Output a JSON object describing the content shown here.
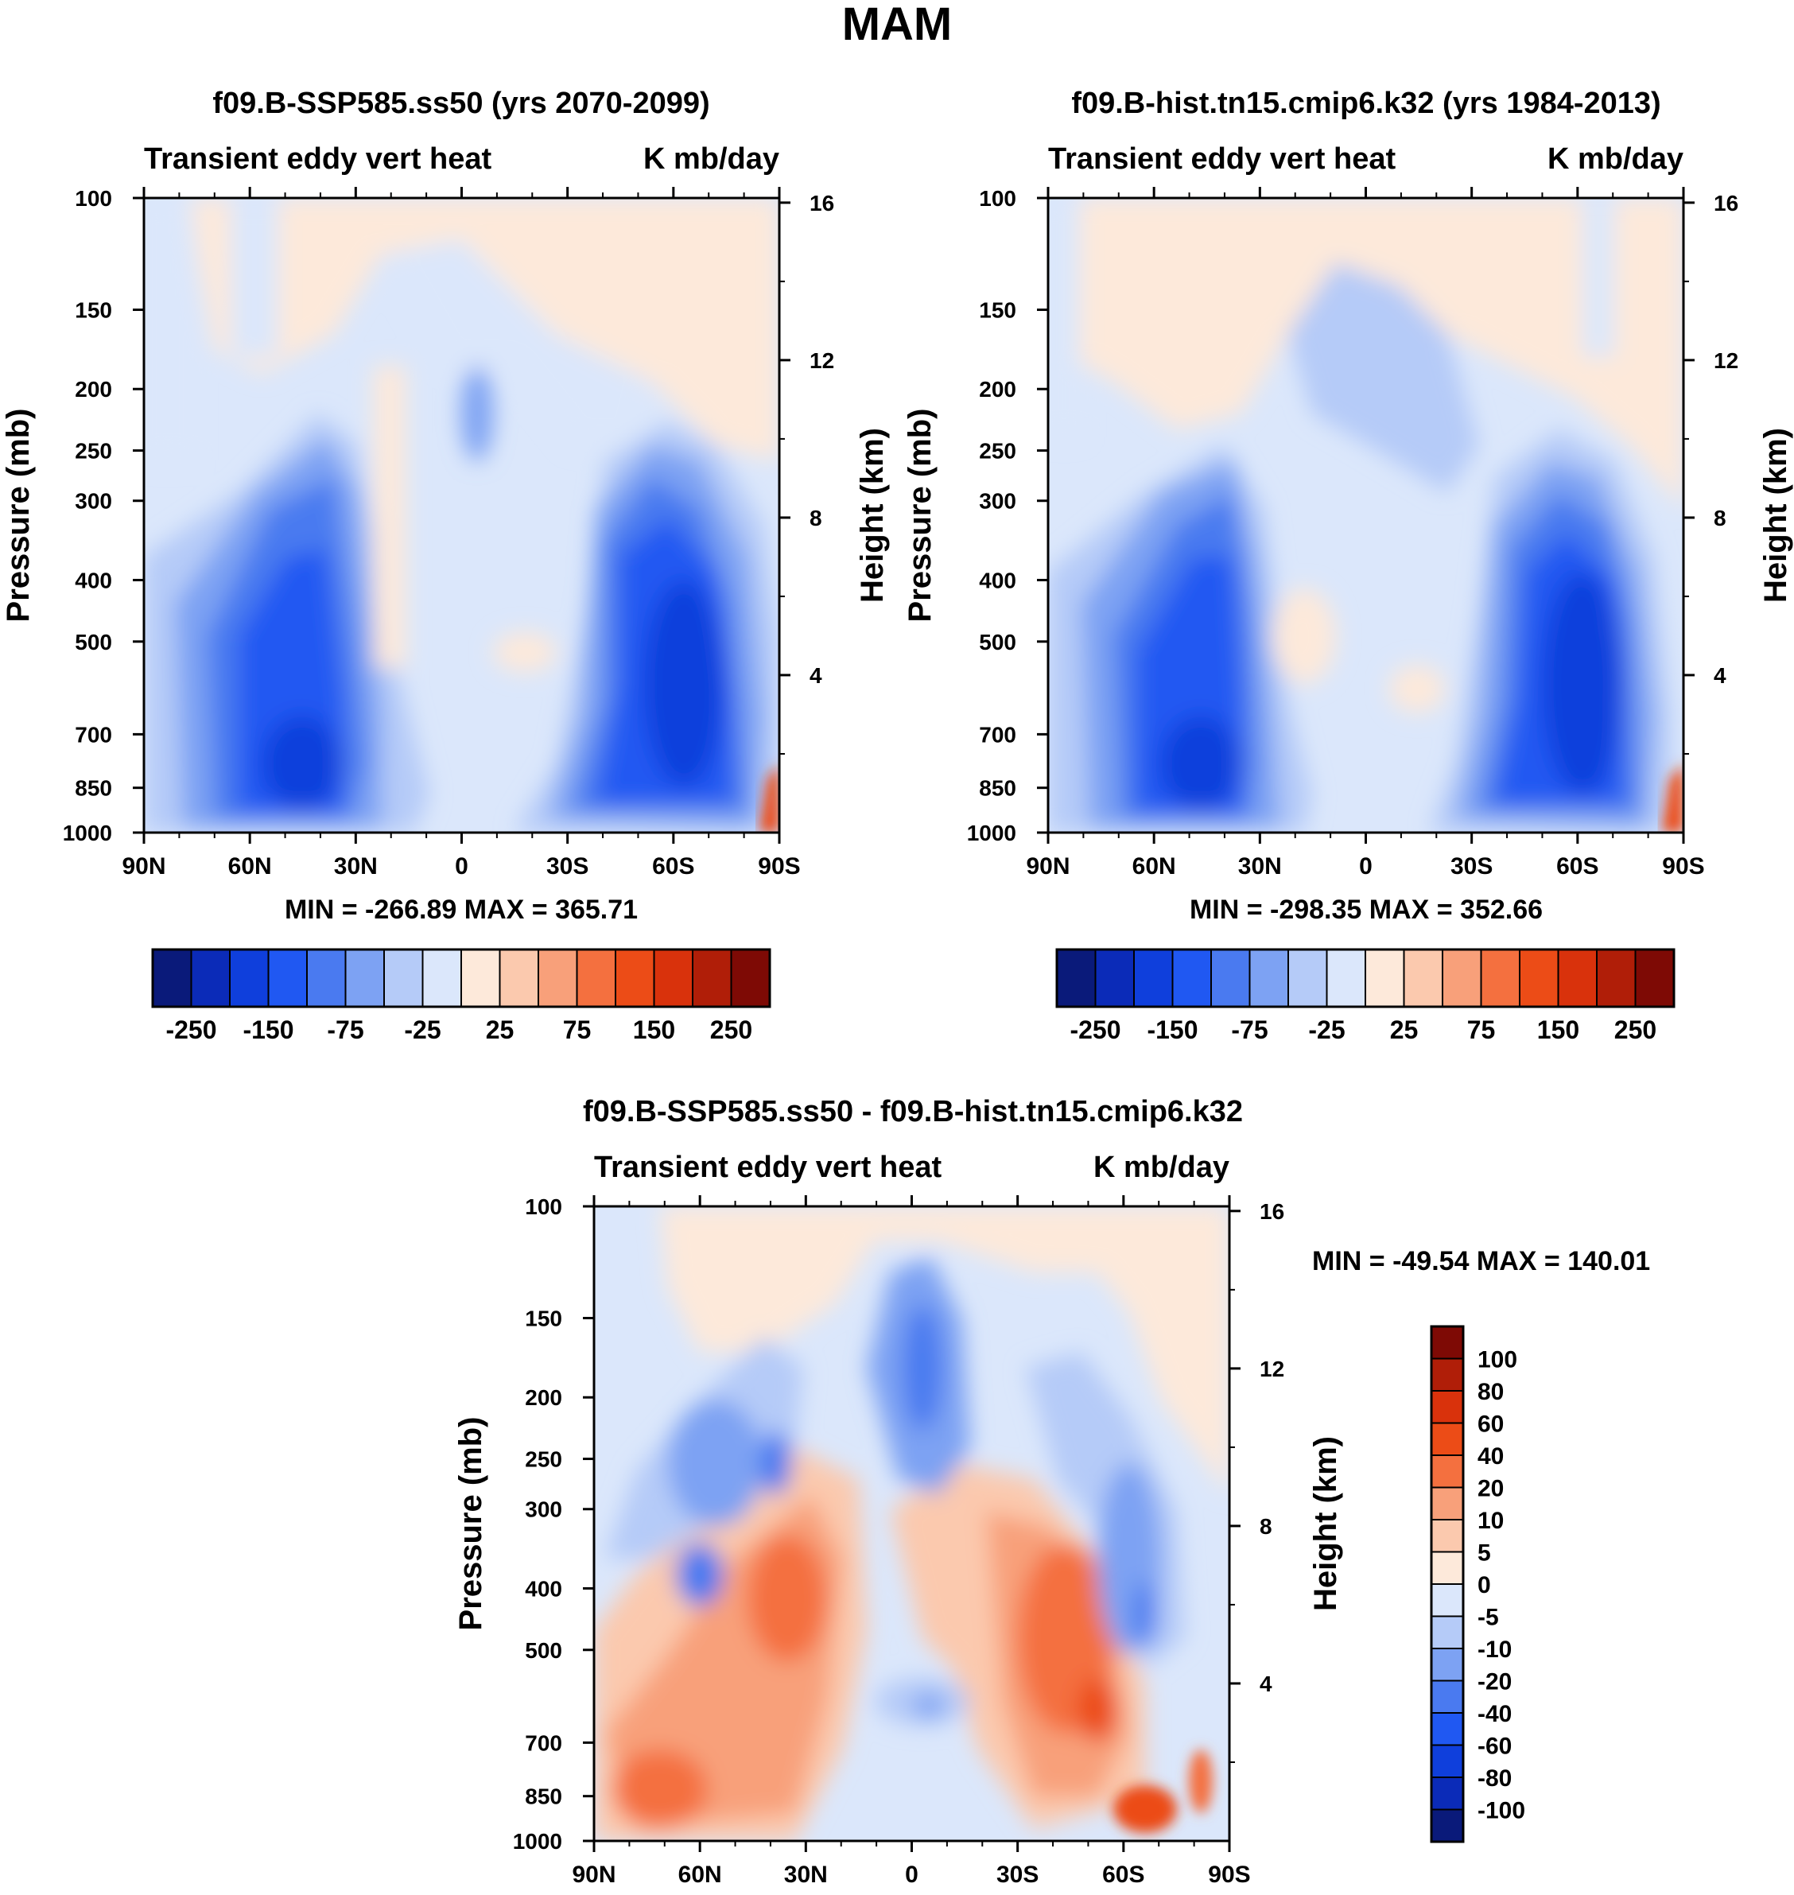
{
  "figure": {
    "title": "MAM"
  },
  "colors": {
    "abs_levels": [
      "#0a1a7a",
      "#0b2bb8",
      "#0f3fdc",
      "#2058f2",
      "#4a7af0",
      "#7da2f3",
      "#b5cbf8",
      "#dbe7fb",
      "#fde9da",
      "#fbc9ae",
      "#f8a07a",
      "#f4703f",
      "#ec4c17",
      "#d9320c",
      "#b01e08",
      "#7e0a05"
    ],
    "diff_levels": [
      "#0a1a7a",
      "#0b2bb8",
      "#0f3fdc",
      "#2058f2",
      "#4a7af0",
      "#7da2f3",
      "#b5cbf8",
      "#dbe7fb",
      "#fde9da",
      "#fbc9ae",
      "#f8a07a",
      "#f4703f",
      "#ec4c17",
      "#d9320c",
      "#b01e08",
      "#7e0a05"
    ]
  },
  "chart_data": [
    {
      "type": "contour",
      "id": "panel_future",
      "title": "f09.B-SSP585.ss50 (yrs 2070-2099)",
      "left_label": "Transient eddy vert heat",
      "right_label": "K mb/day",
      "xlabel": "",
      "ylabel": "Pressure (mb)",
      "y2label": "Height (km)",
      "x_ticks": [
        "90N",
        "60N",
        "30N",
        "0",
        "30S",
        "60S",
        "90S"
      ],
      "x_values": [
        90,
        60,
        30,
        0,
        -30,
        -60,
        -90
      ],
      "y_ticks": [
        100,
        150,
        200,
        250,
        300,
        400,
        500,
        700,
        850,
        1000
      ],
      "y2_ticks": [
        16,
        12,
        8,
        4
      ],
      "ylim": [
        1000,
        100
      ],
      "min": -266.89,
      "max": 365.71,
      "min_max_text": "MIN = -266.89   MAX = 365.71",
      "colorbar_labels": [
        "-250",
        "-150",
        "-75",
        "-25",
        "25",
        "75",
        "150",
        "250"
      ],
      "levels": [
        -250,
        -200,
        -150,
        -100,
        -75,
        -50,
        -25,
        0,
        25,
        50,
        75,
        100,
        150,
        200,
        250
      ],
      "features": [
        {
          "lat": 48,
          "p": 760,
          "value": -240
        },
        {
          "lat": -60,
          "p": 600,
          "value": -250
        }
      ]
    },
    {
      "type": "contour",
      "id": "panel_hist",
      "title": "f09.B-hist.tn15.cmip6.k32 (yrs 1984-2013)",
      "left_label": "Transient eddy vert heat",
      "right_label": "K mb/day",
      "xlabel": "",
      "ylabel": "Pressure (mb)",
      "y2label": "Height (km)",
      "x_ticks": [
        "90N",
        "60N",
        "30N",
        "0",
        "30S",
        "60S",
        "90S"
      ],
      "x_values": [
        90,
        60,
        30,
        0,
        -30,
        -60,
        -90
      ],
      "y_ticks": [
        100,
        150,
        200,
        250,
        300,
        400,
        500,
        700,
        850,
        1000
      ],
      "y2_ticks": [
        16,
        12,
        8,
        4
      ],
      "ylim": [
        1000,
        100
      ],
      "min": -298.35,
      "max": 352.66,
      "min_max_text": "MIN = -298.35   MAX = 352.66",
      "colorbar_labels": [
        "-250",
        "-150",
        "-75",
        "-25",
        "25",
        "75",
        "150",
        "250"
      ],
      "levels": [
        -250,
        -200,
        -150,
        -100,
        -75,
        -50,
        -25,
        0,
        25,
        50,
        75,
        100,
        150,
        200,
        250
      ],
      "features": [
        {
          "lat": 48,
          "p": 760,
          "value": -260
        },
        {
          "lat": -58,
          "p": 620,
          "value": -260
        }
      ]
    },
    {
      "type": "contour",
      "id": "panel_diff",
      "title": "f09.B-SSP585.ss50 - f09.B-hist.tn15.cmip6.k32",
      "left_label": "Transient eddy vert heat",
      "right_label": "K mb/day",
      "xlabel": "",
      "ylabel": "Pressure (mb)",
      "y2label": "Height (km)",
      "x_ticks": [
        "90N",
        "60N",
        "30N",
        "0",
        "30S",
        "60S",
        "90S"
      ],
      "x_values": [
        90,
        60,
        30,
        0,
        -30,
        -60,
        -90
      ],
      "y_ticks": [
        100,
        150,
        200,
        250,
        300,
        400,
        500,
        700,
        850,
        1000
      ],
      "y2_ticks": [
        16,
        12,
        8,
        4
      ],
      "ylim": [
        1000,
        100
      ],
      "min": -49.54,
      "max": 140.01,
      "min_max_text": "MIN = -49.54   MAX = 140.01",
      "colorbar_labels": [
        "100",
        "80",
        "60",
        "40",
        "20",
        "10",
        "5",
        "0",
        "-5",
        "-10",
        "-20",
        "-40",
        "-60",
        "-80",
        "-100"
      ],
      "levels": [
        -100,
        -80,
        -60,
        -40,
        -20,
        -10,
        -5,
        0,
        5,
        10,
        20,
        40,
        60,
        80,
        100
      ],
      "features": [
        {
          "lat": 38,
          "p": 500,
          "value": 40
        },
        {
          "lat": -45,
          "p": 520,
          "value": 50
        },
        {
          "lat": 4,
          "p": 190,
          "value": -30
        },
        {
          "lat": -64,
          "p": 420,
          "value": -30
        }
      ]
    }
  ]
}
